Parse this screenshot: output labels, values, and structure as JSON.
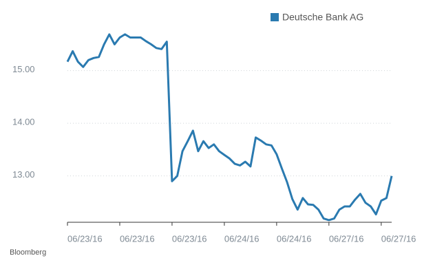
{
  "chart_data": {
    "type": "line",
    "source": "Bloomberg",
    "categories": [
      "06/23/16",
      null,
      null,
      null,
      null,
      null,
      null,
      null,
      null,
      null,
      "06/23/16",
      null,
      null,
      null,
      null,
      null,
      null,
      null,
      null,
      null,
      "06/23/16",
      null,
      null,
      null,
      null,
      null,
      null,
      null,
      null,
      null,
      "06/24/16",
      null,
      null,
      null,
      null,
      null,
      null,
      null,
      null,
      null,
      "06/24/16",
      null,
      null,
      null,
      null,
      null,
      null,
      null,
      null,
      null,
      "06/27/16",
      null,
      null,
      null,
      null,
      null,
      null,
      null,
      null,
      null,
      "06/27/16",
      null,
      null
    ],
    "series": [
      {
        "name": "Deutsche Bank AG",
        "color": "#2a7ab0",
        "values": [
          15.17,
          15.37,
          15.17,
          15.07,
          15.2,
          15.24,
          15.26,
          15.5,
          15.69,
          15.5,
          15.63,
          15.69,
          15.63,
          15.63,
          15.63,
          15.56,
          15.5,
          15.43,
          15.41,
          15.55,
          12.9,
          13.0,
          13.47,
          13.66,
          13.86,
          13.47,
          13.66,
          13.53,
          13.6,
          13.47,
          13.4,
          13.33,
          13.23,
          13.2,
          13.27,
          13.18,
          13.73,
          13.67,
          13.6,
          13.58,
          13.41,
          13.14,
          12.88,
          12.56,
          12.36,
          12.58,
          12.46,
          12.45,
          12.36,
          12.19,
          12.16,
          12.19,
          12.36,
          12.42,
          12.42,
          12.55,
          12.66,
          12.49,
          12.42,
          12.27,
          12.53,
          12.58,
          13.0
        ]
      }
    ],
    "ylim": [
      12.12,
      15.95
    ],
    "yticks": [
      {
        "value": 13,
        "label": "13.00"
      },
      {
        "value": 14,
        "label": "14.00"
      },
      {
        "value": 15,
        "label": "15.00"
      }
    ],
    "grid": true,
    "legend": "top-right"
  }
}
